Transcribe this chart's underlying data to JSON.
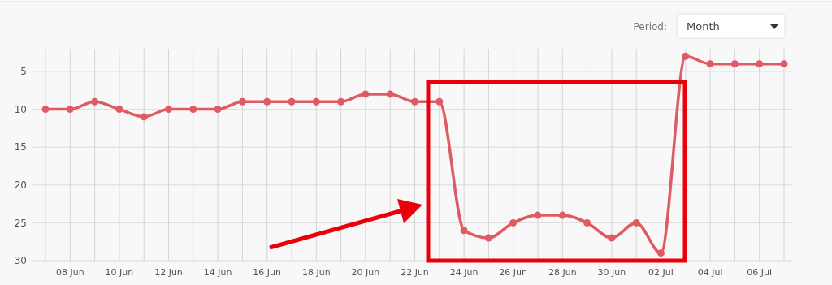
{
  "chart_data": {
    "type": "line",
    "x": [
      "--06-07",
      "--06-08",
      "--06-09",
      "--06-10",
      "--06-11",
      "--06-12",
      "--06-13",
      "--06-14",
      "--06-15",
      "--06-16",
      "--06-17",
      "--06-18",
      "--06-19",
      "--06-20",
      "--06-21",
      "--06-22",
      "--06-23",
      "--06-24",
      "--06-25",
      "--06-26",
      "--06-27",
      "--06-28",
      "--06-29",
      "--06-30",
      "--07-01",
      "--07-02",
      "--07-03",
      "--07-04",
      "--07-05",
      "--07-06",
      "--07-07"
    ],
    "series": [
      {
        "color": "#e05a63",
        "values": [
          10,
          10,
          9,
          10,
          11,
          10,
          10,
          10,
          9,
          9,
          9,
          9,
          9,
          8,
          8,
          9,
          9,
          26,
          27,
          25,
          24,
          24,
          25,
          27,
          25,
          29,
          3,
          4,
          4,
          4,
          4
        ]
      }
    ],
    "ylim": [
      30,
      2
    ],
    "yticks": [
      5,
      10,
      15,
      20,
      25,
      30
    ],
    "xlim": [
      "--06-07",
      "--07-07"
    ],
    "xticks": [
      {
        "value": "--06-07",
        "label": null
      },
      {
        "value": "--06-08",
        "label": "08 Jun"
      },
      {
        "value": "--06-09",
        "label": null
      },
      {
        "value": "--06-10",
        "label": "10 Jun"
      },
      {
        "value": "--06-11",
        "label": null
      },
      {
        "value": "--06-12",
        "label": "12 Jun"
      },
      {
        "value": "--06-13",
        "label": null
      },
      {
        "value": "--06-14",
        "label": "14 Jun"
      },
      {
        "value": "--06-15",
        "label": null
      },
      {
        "value": "--06-16",
        "label": "16 Jun"
      },
      {
        "value": "--06-17",
        "label": null
      },
      {
        "value": "--06-18",
        "label": "18 Jun"
      },
      {
        "value": "--06-19",
        "label": null
      },
      {
        "value": "--06-20",
        "label": "20 Jun"
      },
      {
        "value": "--06-21",
        "label": null
      },
      {
        "value": "--06-22",
        "label": "22 Jun"
      },
      {
        "value": "--06-23",
        "label": null
      },
      {
        "value": "--06-24",
        "label": "24 Jun"
      },
      {
        "value": "--06-25",
        "label": null
      },
      {
        "value": "--06-26",
        "label": "26 Jun"
      },
      {
        "value": "--06-27",
        "label": null
      },
      {
        "value": "--06-28",
        "label": "28 Jun"
      },
      {
        "value": "--06-29",
        "label": null
      },
      {
        "value": "--06-30",
        "label": "30 Jun"
      },
      {
        "value": "--07-01",
        "label": null
      },
      {
        "value": "--07-02",
        "label": "02 Jul"
      },
      {
        "value": "--07-03",
        "label": null
      },
      {
        "value": "--07-04",
        "label": "04 Jul"
      },
      {
        "value": "--07-05",
        "label": null
      },
      {
        "value": "--07-06",
        "label": "06 Jul"
      },
      {
        "value": "--07-07",
        "label": null
      }
    ],
    "grid": true,
    "marker": "circle",
    "line_style": "solid",
    "annotations": [
      "Period:",
      "Month"
    ]
  }
}
